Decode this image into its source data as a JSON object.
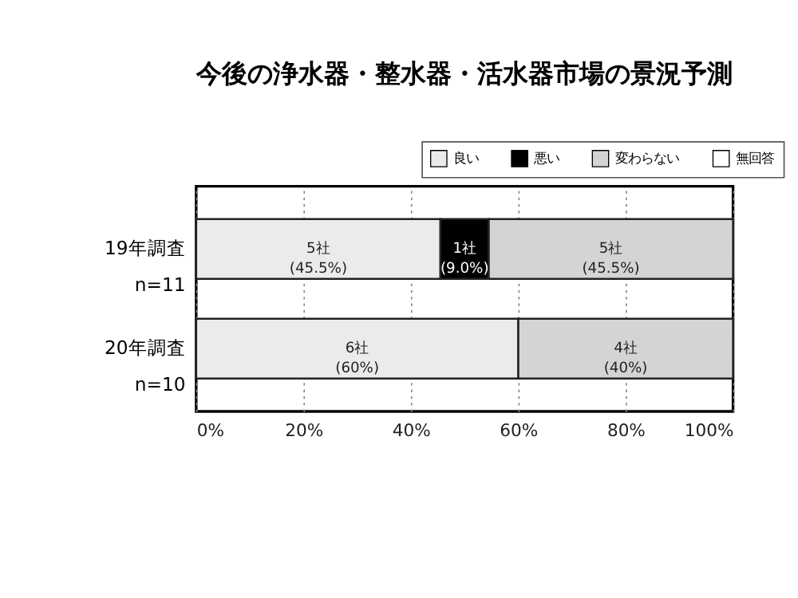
{
  "chart_data": {
    "type": "bar",
    "orientation": "horizontal",
    "stacked": true,
    "title": "今後の浄水器・整水器・活水器市場の景況予測",
    "categories": [
      "19年調査\nn=11",
      "20年調査\nn=10"
    ],
    "series": [
      {
        "name": "良い",
        "color": "#ebebeb",
        "values": [
          45.5,
          60
        ],
        "value_labels": [
          "5社\n(45.5%)",
          "6社\n(60%)"
        ]
      },
      {
        "name": "悪い",
        "color": "#000000",
        "values": [
          9.0,
          0
        ],
        "value_labels": [
          "1社\n(9.0%)",
          null
        ]
      },
      {
        "name": "変わらない",
        "color": "#d4d4d4",
        "values": [
          45.5,
          40
        ],
        "value_labels": [
          "5社\n(45.5%)",
          "4社\n(40%)"
        ]
      },
      {
        "name": "無回答",
        "color": "#ffffff",
        "values": [
          0,
          0
        ],
        "value_labels": [
          null,
          null
        ]
      }
    ],
    "xlim": [
      0,
      100
    ],
    "xticks": [
      {
        "value": 0,
        "label": "0%"
      },
      {
        "value": 20,
        "label": "20%"
      },
      {
        "value": 40,
        "label": "40%"
      },
      {
        "value": 60,
        "label": "60%"
      },
      {
        "value": 80,
        "label": "80%"
      },
      {
        "value": 100,
        "label": "100%"
      }
    ],
    "grid": "x",
    "legend": "top right"
  }
}
